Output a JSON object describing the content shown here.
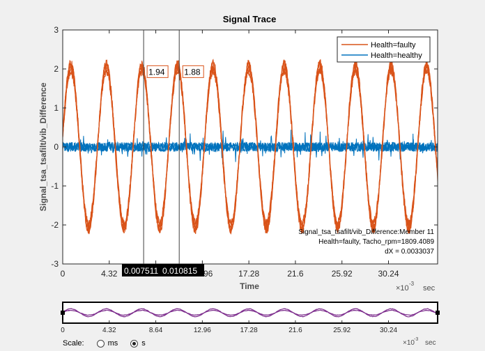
{
  "chart_data": {
    "type": "line",
    "title": "Signal Trace",
    "xlabel": "Time",
    "ylabel": "Signal_tsa_tsafilt/vib_Difference",
    "x_exponent_label": "×10",
    "x_exponent_power": "-3",
    "x_unit": "sec",
    "xlim": [
      0,
      0.0348
    ],
    "ylim": [
      -3,
      3
    ],
    "x_ticks": [
      0,
      0.00432,
      0.00864,
      0.01296,
      0.01728,
      0.0216,
      0.02592,
      0.03024
    ],
    "x_tick_labels": [
      "0",
      "4.32",
      "8.64",
      "12.96",
      "17.28",
      "21.6",
      "25.92",
      "30.24"
    ],
    "y_ticks": [
      -3,
      -2,
      -1,
      0,
      1,
      2,
      3
    ],
    "y_tick_labels": [
      "-3",
      "-2",
      "-1",
      "0",
      "1",
      "2",
      "3"
    ],
    "grid": false,
    "legend_position": "top-right",
    "series": [
      {
        "name": "Health=faulty",
        "color": "#d95319",
        "amplitude": 2.05,
        "period_sec": 0.003303,
        "phase_sec": 0.00075
      },
      {
        "name": "Health=healthy",
        "color": "#0072bd",
        "amplitude": 0.12
      }
    ],
    "cursors": [
      {
        "x": 0.007511,
        "x_label": "0.007511",
        "y_label": "1.94"
      },
      {
        "x": 0.010815,
        "x_label": "0.010815",
        "y_label": "1.88"
      }
    ],
    "info_box": [
      "Signal_tsa_tsafilt/vib_Difference:Member 11",
      "Health=faulty, Tacho_rpm=1809.4089",
      "dX = 0.0033037"
    ],
    "overview": {
      "line_color": "#7e2f8e",
      "x_tick_labels": [
        "0",
        "4.32",
        "8.64",
        "12.96",
        "17.28",
        "21.6",
        "25.92",
        "30.24"
      ],
      "x_unit": "sec"
    }
  },
  "scale_control": {
    "label": "Scale:",
    "options": [
      {
        "label": "ms",
        "selected": false
      },
      {
        "label": "s",
        "selected": true
      }
    ]
  }
}
